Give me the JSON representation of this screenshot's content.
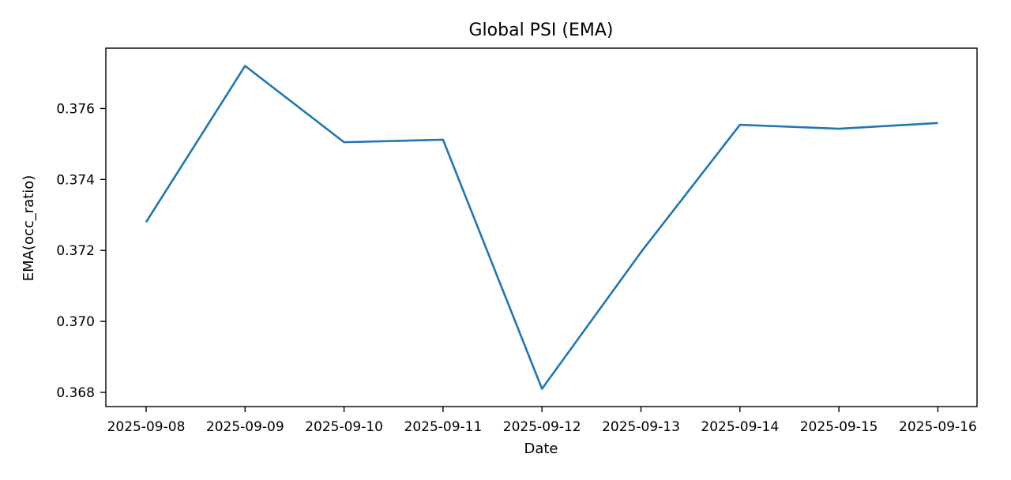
{
  "chart_data": {
    "type": "line",
    "title": "Global PSI (EMA)",
    "xlabel": "Date",
    "ylabel": "EMA(occ_ratio)",
    "x": [
      "2025-09-08",
      "2025-09-09",
      "2025-09-10",
      "2025-09-11",
      "2025-09-12",
      "2025-09-13",
      "2025-09-14",
      "2025-09-15",
      "2025-09-16"
    ],
    "series": [
      {
        "values": [
          0.3728,
          0.3772,
          0.37505,
          0.37512,
          0.3681,
          0.37195,
          0.37554,
          0.37543,
          0.37559
        ],
        "color": "#1f77b4"
      }
    ],
    "yticks": [
      "0.368",
      "0.370",
      "0.372",
      "0.374",
      "0.376"
    ],
    "ylim": [
      0.3676,
      0.3777
    ],
    "grid": false,
    "legend": "none"
  }
}
